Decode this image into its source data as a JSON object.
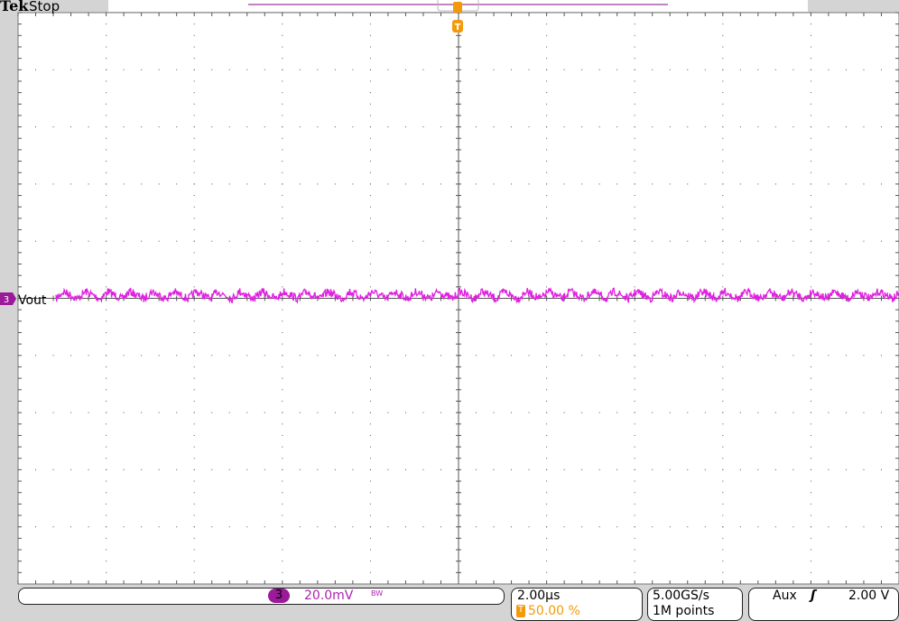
{
  "header": {
    "brand": "Tek",
    "status": "Stop"
  },
  "channel": {
    "number": "3",
    "label": "Vout",
    "scale": "20.0mV",
    "bw_marker": "BW",
    "color": "#e020e0",
    "badge_color": "#9a1a9a"
  },
  "timebase": {
    "scale": "2.00µs",
    "trigger_position": "50.00 %",
    "trigger_icon": "T"
  },
  "acquisition": {
    "sample_rate": "5.00GS/s",
    "record_length": "1M points"
  },
  "trigger": {
    "source": "Aux",
    "slope": "rising-edge-icon",
    "level": "2.00 V",
    "color": "#f39a0a"
  },
  "chart_data": {
    "type": "line",
    "x_divisions": 10,
    "y_divisions": 10,
    "x_per_div": "2.00µs",
    "y_per_div": "20.0mV",
    "grid": true,
    "series": [
      {
        "name": "Vout",
        "description_values": {
          "mean_div": 0.05,
          "ripple_pp_div": 0.2,
          "ripple_period_us": 0.5
        }
      }
    ]
  }
}
